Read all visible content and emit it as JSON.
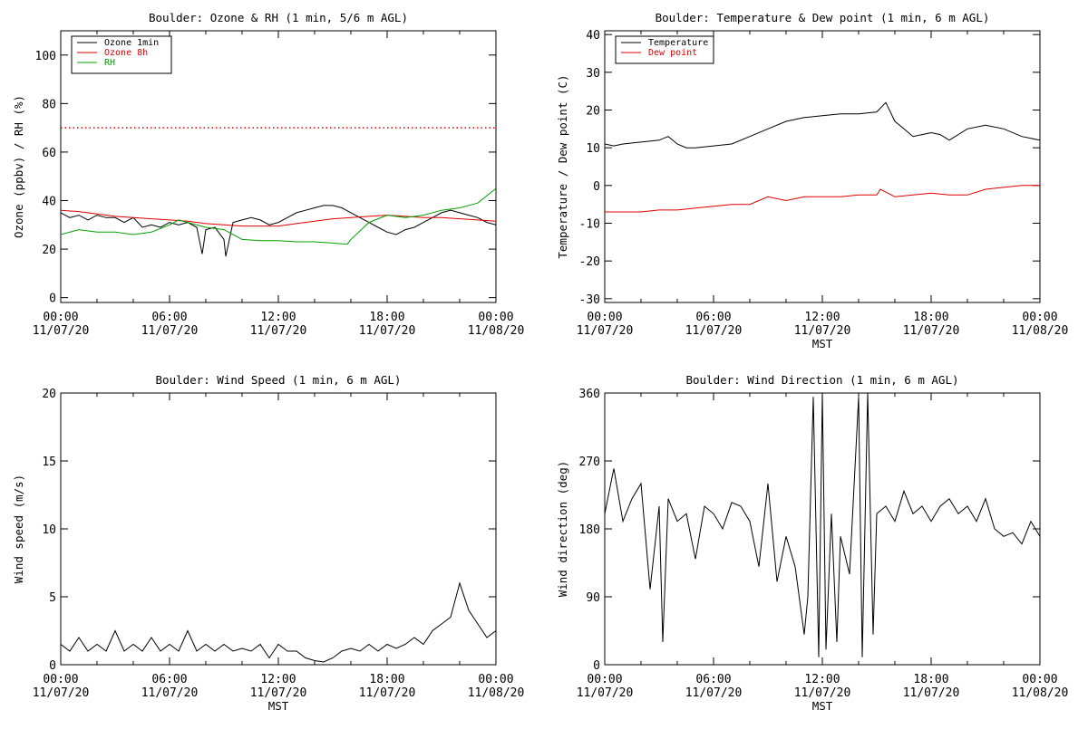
{
  "colors": {
    "black": "#000000",
    "red": "#dd0000",
    "green": "#00a000"
  },
  "chart_data": [
    {
      "type": "line",
      "title": "Boulder: Ozone & RH (1 min, 5/6 m AGL)",
      "xlabel": "",
      "ylabel": "Ozone (ppbv) / RH (%)",
      "xlim": [
        0,
        24
      ],
      "ylim": [
        -2,
        110
      ],
      "yticks": [
        0,
        20,
        40,
        60,
        80,
        100
      ],
      "xticks": [
        {
          "x": 0,
          "l1": "00:00",
          "l2": "11/07/20"
        },
        {
          "x": 6,
          "l1": "06:00",
          "l2": "11/07/20"
        },
        {
          "x": 12,
          "l1": "12:00",
          "l2": "11/07/20"
        },
        {
          "x": 18,
          "l1": "18:00",
          "l2": "11/07/20"
        },
        {
          "x": 24,
          "l1": "00:00",
          "l2": "11/08/20"
        }
      ],
      "legend_position": "top-left",
      "reference_line": {
        "y": 70,
        "color": "#dd0000",
        "style": "dotted"
      },
      "series": [
        {
          "name": "Ozone 1min",
          "color": "#000000",
          "x": [
            0,
            0.5,
            1,
            1.5,
            2,
            2.5,
            3,
            3.5,
            4,
            4.5,
            5,
            5.5,
            6,
            6.5,
            7,
            7.5,
            7.8,
            8,
            8.5,
            9,
            9.1,
            9.5,
            10,
            10.5,
            11,
            11.5,
            12,
            12.5,
            13,
            13.5,
            14,
            14.5,
            15,
            15.5,
            16,
            16.5,
            17,
            17.5,
            18,
            18.5,
            19,
            19.5,
            20,
            20.5,
            21,
            21.5,
            22,
            22.5,
            23,
            23.5,
            24
          ],
          "y": [
            35,
            33,
            34,
            32,
            34,
            33,
            33,
            31,
            33,
            29,
            30,
            29,
            31,
            30,
            31,
            29,
            18,
            28,
            29,
            24,
            17,
            31,
            32,
            33,
            32,
            30,
            31,
            33,
            35,
            36,
            37,
            38,
            38,
            37,
            35,
            33,
            31,
            29,
            27,
            26,
            28,
            29,
            31,
            33,
            35,
            36,
            35,
            34,
            33,
            31,
            30
          ]
        },
        {
          "name": "Ozone 8h",
          "color": "#dd0000",
          "x": [
            0,
            1,
            2,
            3,
            4,
            5,
            6,
            7,
            8,
            9,
            10,
            11,
            12,
            13,
            14,
            15,
            16,
            17,
            18,
            19,
            20,
            21,
            22,
            23,
            24
          ],
          "y": [
            36,
            35.5,
            34.5,
            33.5,
            33,
            32.5,
            32,
            31.5,
            30.5,
            30,
            29.5,
            29.5,
            29.5,
            30.5,
            31.5,
            32.5,
            33,
            33.5,
            34,
            33.5,
            33,
            33,
            32.5,
            32,
            31.5
          ]
        },
        {
          "name": "RH",
          "color": "#00a000",
          "x": [
            0,
            1,
            2,
            3,
            4,
            5,
            6,
            6.5,
            7,
            8,
            9,
            10,
            11,
            12,
            13,
            14,
            15,
            15.8,
            16,
            17,
            18,
            19,
            20,
            21,
            22,
            23,
            24
          ],
          "y": [
            26,
            28,
            27,
            27,
            26,
            27,
            30,
            32,
            31,
            29,
            28,
            24,
            23.5,
            23.5,
            23,
            23,
            22.5,
            22,
            24,
            31,
            34,
            33,
            34,
            36,
            37,
            39,
            45
          ]
        }
      ]
    },
    {
      "type": "line",
      "title": "Boulder: Temperature & Dew point (1 min, 6 m AGL)",
      "xlabel": "MST",
      "ylabel": "Temperature / Dew point (C)",
      "xlim": [
        0,
        24
      ],
      "ylim": [
        -31,
        41
      ],
      "yticks": [
        -30,
        -20,
        -10,
        0,
        10,
        20,
        30,
        40
      ],
      "xticks": [
        {
          "x": 0,
          "l1": "00:00",
          "l2": "11/07/20"
        },
        {
          "x": 6,
          "l1": "06:00",
          "l2": "11/07/20"
        },
        {
          "x": 12,
          "l1": "12:00",
          "l2": "11/07/20"
        },
        {
          "x": 18,
          "l1": "18:00",
          "l2": "11/07/20"
        },
        {
          "x": 24,
          "l1": "00:00",
          "l2": "11/08/20"
        }
      ],
      "legend_position": "top-left",
      "series": [
        {
          "name": "Temperature",
          "color": "#000000",
          "x": [
            0,
            0.5,
            1,
            2,
            3,
            3.5,
            4,
            4.5,
            5,
            6,
            7,
            8,
            9,
            10,
            11,
            12,
            13,
            14,
            15,
            15.3,
            15.5,
            16,
            16.5,
            17,
            18,
            18.5,
            19,
            20,
            21,
            22,
            23,
            24
          ],
          "y": [
            11,
            10.5,
            11,
            11.5,
            12,
            13,
            11,
            10,
            10,
            10.5,
            11,
            13,
            15,
            17,
            18,
            18.5,
            19,
            19,
            19.5,
            21,
            22,
            17,
            15,
            13,
            14,
            13.5,
            12,
            15,
            16,
            15,
            13,
            12
          ]
        },
        {
          "name": "Dew point",
          "color": "#dd0000",
          "x": [
            0,
            1,
            2,
            3,
            4,
            5,
            6,
            7,
            8,
            9,
            10,
            11,
            12,
            13,
            14,
            15,
            15.2,
            16,
            17,
            18,
            19,
            20,
            21,
            22,
            23,
            24
          ],
          "y": [
            -7,
            -7,
            -7,
            -6.5,
            -6.5,
            -6,
            -5.5,
            -5,
            -5,
            -3,
            -4,
            -3,
            -3,
            -3,
            -2.5,
            -2.5,
            -1,
            -3,
            -2.5,
            -2,
            -2.5,
            -2.5,
            -1,
            -0.5,
            0,
            0
          ]
        }
      ]
    },
    {
      "type": "line",
      "title": "Boulder: Wind Speed (1 min, 6 m AGL)",
      "xlabel": "MST",
      "ylabel": "Wind speed (m/s)",
      "xlim": [
        0,
        24
      ],
      "ylim": [
        0,
        20
      ],
      "yticks": [
        0,
        5,
        10,
        15,
        20
      ],
      "xticks": [
        {
          "x": 0,
          "l1": "00:00",
          "l2": "11/07/20"
        },
        {
          "x": 6,
          "l1": "06:00",
          "l2": "11/07/20"
        },
        {
          "x": 12,
          "l1": "12:00",
          "l2": "11/07/20"
        },
        {
          "x": 18,
          "l1": "18:00",
          "l2": "11/07/20"
        },
        {
          "x": 24,
          "l1": "00:00",
          "l2": "11/08/20"
        }
      ],
      "series": [
        {
          "color": "#000000",
          "x": [
            0,
            0.5,
            1,
            1.5,
            2,
            2.5,
            3,
            3.5,
            4,
            4.5,
            5,
            5.5,
            6,
            6.5,
            7,
            7.5,
            8,
            8.5,
            9,
            9.5,
            10,
            10.5,
            11,
            11.5,
            12,
            12.5,
            13,
            13.5,
            14,
            14.5,
            15,
            15.5,
            16,
            16.5,
            17,
            17.5,
            18,
            18.5,
            19,
            19.5,
            20,
            20.5,
            21,
            21.5,
            22,
            22.5,
            23,
            23.5,
            24
          ],
          "y": [
            1.5,
            1,
            2,
            1,
            1.5,
            1,
            2.5,
            1,
            1.5,
            1,
            2,
            1,
            1.5,
            1,
            2.5,
            1,
            1.5,
            1,
            1.5,
            1,
            1.2,
            1,
            1.5,
            0.5,
            1.5,
            1,
            1,
            0.5,
            0.3,
            0.2,
            0.5,
            1,
            1.2,
            1,
            1.5,
            1,
            1.5,
            1.2,
            1.5,
            2,
            1.5,
            2.5,
            3,
            3.5,
            6,
            4,
            3,
            2,
            2.5
          ]
        }
      ]
    },
    {
      "type": "line",
      "title": "Boulder: Wind Direction (1 min, 6 m AGL)",
      "xlabel": "MST",
      "ylabel": "Wind direction (deg)",
      "xlim": [
        0,
        24
      ],
      "ylim": [
        0,
        360
      ],
      "yticks": [
        0,
        90,
        180,
        270,
        360
      ],
      "xticks": [
        {
          "x": 0,
          "l1": "00:00",
          "l2": "11/07/20"
        },
        {
          "x": 6,
          "l1": "06:00",
          "l2": "11/07/20"
        },
        {
          "x": 12,
          "l1": "12:00",
          "l2": "11/07/20"
        },
        {
          "x": 18,
          "l1": "18:00",
          "l2": "11/07/20"
        },
        {
          "x": 24,
          "l1": "00:00",
          "l2": "11/08/20"
        }
      ],
      "series": [
        {
          "color": "#000000",
          "x": [
            0,
            0.5,
            1,
            1.5,
            2,
            2.5,
            3,
            3.2,
            3.5,
            4,
            4.5,
            5,
            5.5,
            6,
            6.5,
            7,
            7.5,
            8,
            8.5,
            9,
            9.5,
            10,
            10.5,
            11,
            11.2,
            11.5,
            11.8,
            12,
            12.2,
            12.5,
            12.8,
            13,
            13.5,
            14,
            14.2,
            14.5,
            14.8,
            15,
            15.5,
            16,
            16.5,
            17,
            17.5,
            18,
            18.5,
            19,
            19.5,
            20,
            20.5,
            21,
            21.5,
            22,
            22.5,
            23,
            23.5,
            24
          ],
          "y": [
            200,
            260,
            190,
            220,
            240,
            100,
            210,
            30,
            220,
            190,
            200,
            140,
            210,
            200,
            180,
            215,
            210,
            190,
            130,
            240,
            110,
            170,
            130,
            40,
            90,
            355,
            10,
            360,
            20,
            200,
            30,
            170,
            120,
            355,
            10,
            360,
            40,
            200,
            210,
            190,
            230,
            200,
            210,
            190,
            210,
            220,
            200,
            210,
            190,
            220,
            180,
            170,
            175,
            160,
            190,
            170
          ]
        }
      ]
    }
  ]
}
